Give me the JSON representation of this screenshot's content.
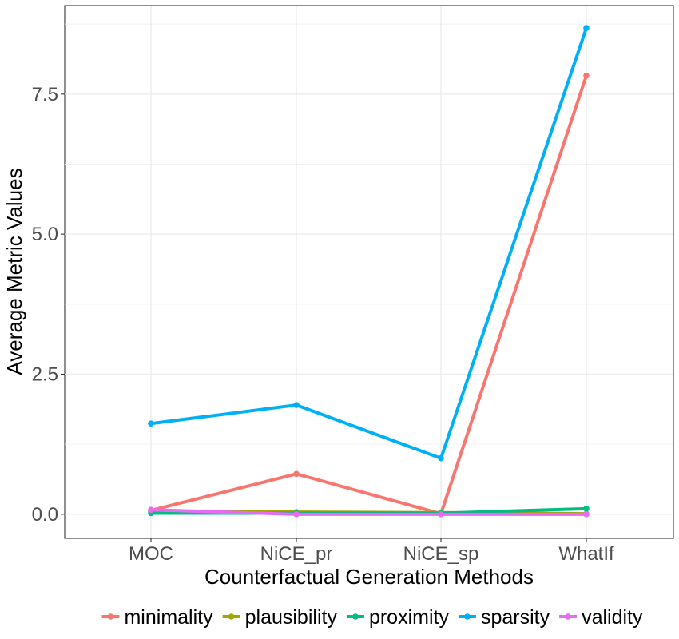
{
  "chart_data": {
    "type": "line",
    "title": "",
    "xlabel": "Counterfactual Generation Methods",
    "ylabel": "Average Metric Values",
    "categories": [
      "MOC",
      "NiCE_pr",
      "NiCE_sp",
      "WhatIf"
    ],
    "ylim": [
      -0.43,
      9.08
    ],
    "yticks": [
      0.0,
      2.5,
      5.0,
      7.5
    ],
    "ytick_labels": [
      "0.0",
      "2.5",
      "5.0",
      "7.5"
    ],
    "grid": true,
    "legend_position": "bottom",
    "series": [
      {
        "name": "minimality",
        "color": "#F8766D",
        "values": [
          0.07,
          0.72,
          0.01,
          7.83
        ]
      },
      {
        "name": "plausibility",
        "color": "#A3A500",
        "values": [
          0.05,
          0.04,
          0.03,
          0.01
        ]
      },
      {
        "name": "proximity",
        "color": "#00BF7D",
        "values": [
          0.02,
          0.02,
          0.02,
          0.1
        ]
      },
      {
        "name": "sparsity",
        "color": "#00B0F6",
        "values": [
          1.62,
          1.95,
          1.0,
          8.68
        ]
      },
      {
        "name": "validity",
        "color": "#E76BF3",
        "values": [
          0.08,
          0.0,
          0.0,
          0.0
        ]
      }
    ]
  }
}
